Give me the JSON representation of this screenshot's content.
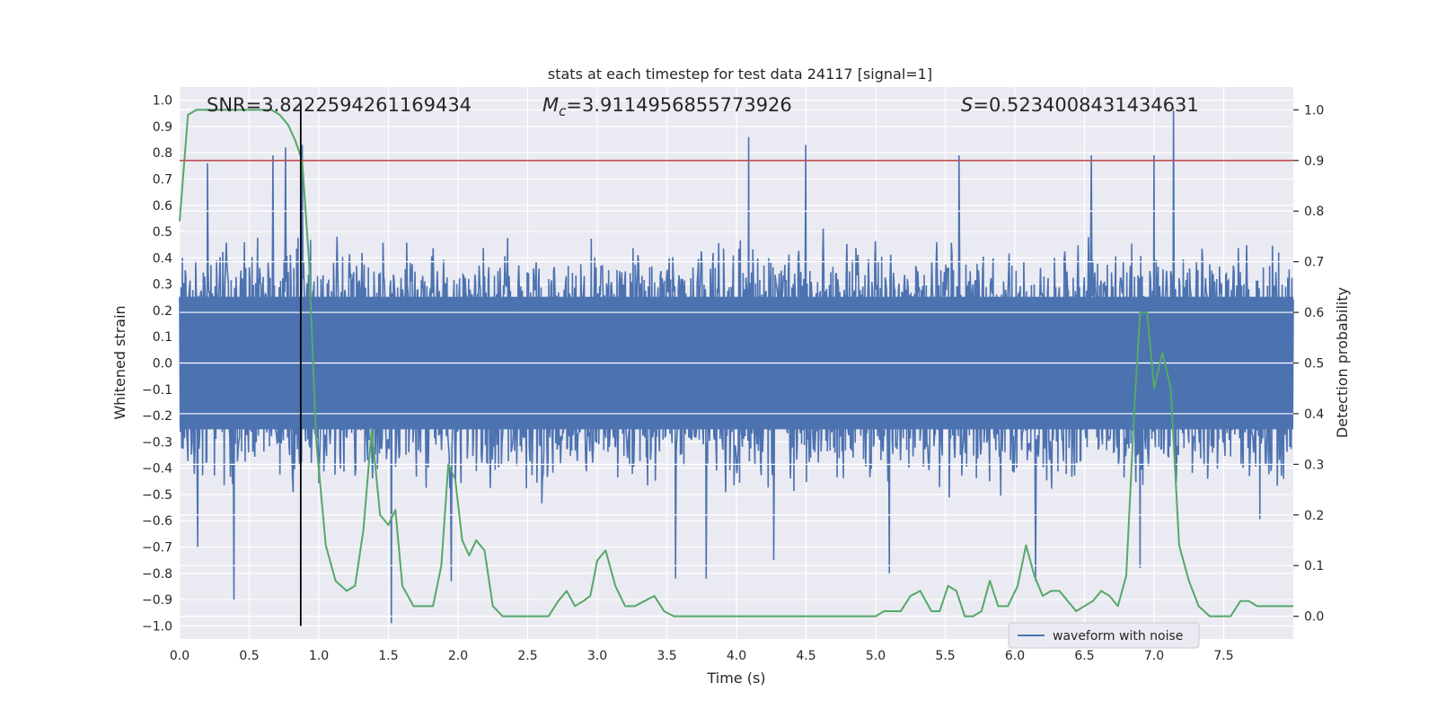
{
  "chart_data": {
    "type": "line",
    "title": "stats at each timestep for test data 24117 [signal=1]",
    "xlabel": "Time (s)",
    "ylabel": "Whitened strain",
    "y2label": "Detection probability",
    "xlim": [
      0.0,
      8.0
    ],
    "ylim": [
      -1.05,
      1.05
    ],
    "y2lim": [
      -0.045,
      1.045
    ],
    "xticks": [
      0.0,
      0.5,
      1.0,
      1.5,
      2.0,
      2.5,
      3.0,
      3.5,
      4.0,
      4.5,
      5.0,
      5.5,
      6.0,
      6.5,
      7.0,
      7.5
    ],
    "xtick_labels": [
      "0.0",
      "0.5",
      "1.0",
      "1.5",
      "2.0",
      "2.5",
      "3.0",
      "3.5",
      "4.0",
      "4.5",
      "5.0",
      "5.5",
      "6.0",
      "6.5",
      "7.0",
      "7.5"
    ],
    "yticks": [
      -1.0,
      -0.9,
      -0.8,
      -0.7,
      -0.6,
      -0.5,
      -0.4,
      -0.3,
      -0.2,
      -0.1,
      0.0,
      0.1,
      0.2,
      0.3,
      0.4,
      0.5,
      0.6,
      0.7,
      0.8,
      0.9,
      1.0
    ],
    "ytick_labels": [
      "−1.0",
      "−0.9",
      "−0.8",
      "−0.7",
      "−0.6",
      "−0.5",
      "−0.4",
      "−0.3",
      "−0.2",
      "−0.1",
      "0.0",
      "0.1",
      "0.2",
      "0.3",
      "0.4",
      "0.5",
      "0.6",
      "0.7",
      "0.8",
      "0.9",
      "1.0"
    ],
    "y2ticks": [
      0.0,
      0.1,
      0.2,
      0.3,
      0.4,
      0.5,
      0.6,
      0.7,
      0.8,
      0.9,
      1.0
    ],
    "y2tick_labels": [
      "0.0",
      "0.1",
      "0.2",
      "0.3",
      "0.4",
      "0.5",
      "0.6",
      "0.7",
      "0.8",
      "0.9",
      "1.0"
    ],
    "annotations": {
      "snr": "SNR=3.8222594261169434",
      "mc_symbol": "M",
      "mc_sub": "c",
      "mc_value": "=3.9114956855773926",
      "s_symbol": "S",
      "s_value": "=0.5234008431434631"
    },
    "legend": {
      "label": "waveform with noise",
      "position": "lower-right"
    },
    "threshold": {
      "axis": "y2",
      "value": 0.9,
      "color": "#c44e52"
    },
    "marker_line": {
      "x": 0.87,
      "y_from": -1.0,
      "y_to": 1.0,
      "color": "#000000"
    },
    "series": [
      {
        "name": "waveform with noise",
        "axis": "y",
        "color": "#4c72b0",
        "generated": true,
        "n_samples": 1600,
        "core_amplitude": 0.42,
        "peaks": [
          {
            "x": 0.76,
            "y": 0.82
          },
          {
            "x": 0.88,
            "y": 0.83
          },
          {
            "x": 4.09,
            "y": 0.86
          },
          {
            "x": 4.5,
            "y": 0.83
          },
          {
            "x": 7.14,
            "y": 0.97
          },
          {
            "x": 0.2,
            "y": 0.76
          },
          {
            "x": 0.67,
            "y": 0.79
          },
          {
            "x": 5.6,
            "y": 0.79
          },
          {
            "x": 6.55,
            "y": 0.79
          },
          {
            "x": 7.0,
            "y": 0.79
          },
          {
            "x": 0.39,
            "y": -0.9
          },
          {
            "x": 1.52,
            "y": -0.99
          },
          {
            "x": 3.78,
            "y": -0.82
          },
          {
            "x": 3.56,
            "y": -0.82
          },
          {
            "x": 4.27,
            "y": -0.75
          },
          {
            "x": 6.15,
            "y": -0.83
          },
          {
            "x": 1.95,
            "y": -0.83
          },
          {
            "x": 0.13,
            "y": -0.7
          },
          {
            "x": 5.1,
            "y": -0.8
          },
          {
            "x": 6.9,
            "y": -0.78
          }
        ]
      },
      {
        "name": "detection probability",
        "axis": "y2",
        "color": "#55a868",
        "x": [
          0.0,
          0.06,
          0.12,
          0.2,
          0.3,
          0.4,
          0.5,
          0.6,
          0.66,
          0.72,
          0.78,
          0.83,
          0.88,
          0.93,
          0.98,
          1.05,
          1.12,
          1.2,
          1.26,
          1.32,
          1.38,
          1.44,
          1.5,
          1.55,
          1.6,
          1.68,
          1.75,
          1.82,
          1.88,
          1.93,
          1.98,
          2.03,
          2.08,
          2.13,
          2.19,
          2.25,
          2.32,
          2.38,
          2.46,
          2.55,
          2.65,
          2.72,
          2.78,
          2.84,
          2.9,
          2.95,
          3.0,
          3.06,
          3.13,
          3.2,
          3.27,
          3.34,
          3.41,
          3.48,
          3.55,
          3.7,
          3.8,
          4.0,
          4.2,
          4.4,
          4.6,
          4.7,
          4.8,
          4.9,
          4.95,
          5.0,
          5.06,
          5.12,
          5.18,
          5.25,
          5.32,
          5.4,
          5.46,
          5.52,
          5.58,
          5.64,
          5.7,
          5.76,
          5.82,
          5.88,
          5.95,
          6.02,
          6.08,
          6.14,
          6.2,
          6.26,
          6.32,
          6.38,
          6.44,
          6.5,
          6.56,
          6.62,
          6.68,
          6.74,
          6.8,
          6.86,
          6.9,
          6.95,
          7.0,
          7.06,
          7.12,
          7.18,
          7.25,
          7.32,
          7.4,
          7.48,
          7.55,
          7.62,
          7.68,
          7.74,
          7.8,
          7.86,
          7.92,
          8.0
        ],
        "y": [
          0.78,
          0.99,
          1.0,
          1.0,
          1.0,
          1.0,
          1.0,
          1.0,
          1.0,
          0.99,
          0.97,
          0.94,
          0.9,
          0.7,
          0.35,
          0.14,
          0.07,
          0.05,
          0.06,
          0.17,
          0.37,
          0.2,
          0.18,
          0.21,
          0.06,
          0.02,
          0.02,
          0.02,
          0.1,
          0.3,
          0.27,
          0.15,
          0.12,
          0.15,
          0.13,
          0.02,
          0.0,
          0.0,
          0.0,
          0.0,
          0.0,
          0.03,
          0.05,
          0.02,
          0.03,
          0.04,
          0.11,
          0.13,
          0.06,
          0.02,
          0.02,
          0.03,
          0.04,
          0.01,
          0.0,
          0.0,
          0.0,
          0.0,
          0.0,
          0.0,
          0.0,
          0.0,
          0.0,
          0.0,
          0.0,
          0.0,
          0.01,
          0.01,
          0.01,
          0.04,
          0.05,
          0.01,
          0.01,
          0.06,
          0.05,
          0.0,
          0.0,
          0.01,
          0.07,
          0.02,
          0.02,
          0.06,
          0.14,
          0.08,
          0.04,
          0.05,
          0.05,
          0.03,
          0.01,
          0.02,
          0.03,
          0.05,
          0.04,
          0.02,
          0.08,
          0.42,
          0.6,
          0.6,
          0.45,
          0.52,
          0.45,
          0.14,
          0.07,
          0.02,
          0.0,
          0.0,
          0.0,
          0.03,
          0.03,
          0.02,
          0.02,
          0.02,
          0.02,
          0.02
        ]
      }
    ]
  }
}
